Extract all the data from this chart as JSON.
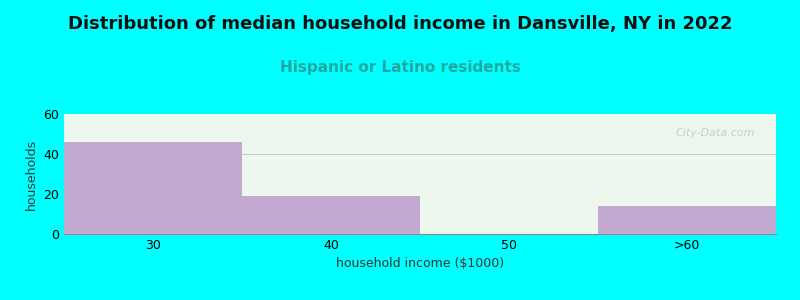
{
  "title": "Distribution of median household income in Dansville, NY in 2022",
  "subtitle": "Hispanic or Latino residents",
  "categories": [
    "30",
    "40",
    "50",
    ">60"
  ],
  "values": [
    46,
    19,
    0,
    14
  ],
  "bar_color": "#C3A8D1",
  "background_color": "#00FFFF",
  "plot_bg_color": "#EEF7EE",
  "xlabel": "household income ($1000)",
  "ylabel": "households",
  "ylim": [
    0,
    60
  ],
  "yticks": [
    0,
    20,
    40,
    60
  ],
  "title_fontsize": 13,
  "subtitle_fontsize": 11,
  "subtitle_color": "#20A8A0",
  "axis_label_fontsize": 9,
  "tick_fontsize": 9,
  "watermark": "City-Data.com"
}
